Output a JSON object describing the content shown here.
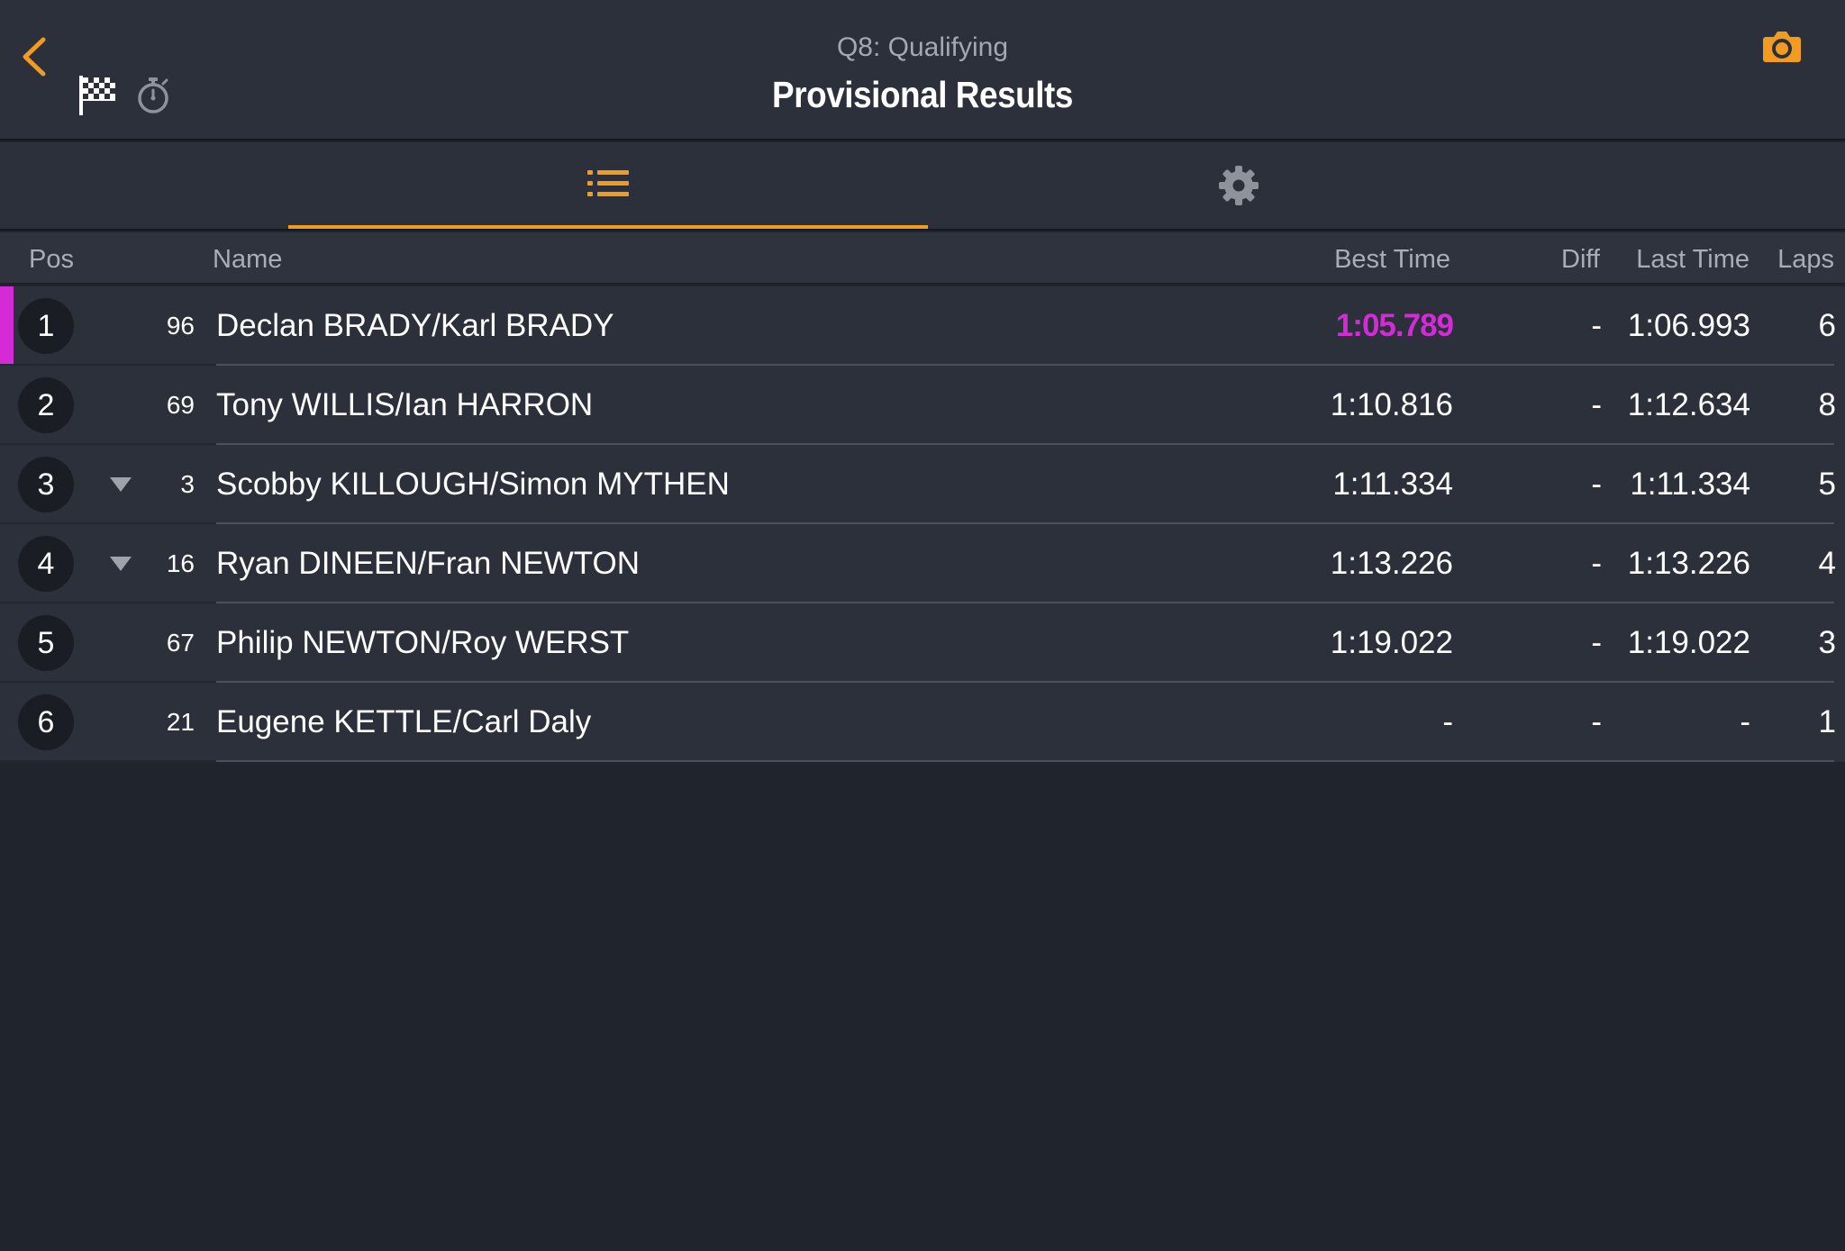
{
  "header": {
    "subtitle": "Q8: Qualifying",
    "title": "Provisional Results",
    "icons": [
      "chevron-left-icon",
      "checkered-flag-icon",
      "stopwatch-icon",
      "camera-icon"
    ]
  },
  "tabs": [
    {
      "name": "list-icon",
      "selected": true
    },
    {
      "name": "gear-icon",
      "selected": false
    }
  ],
  "columns": {
    "pos": "Pos",
    "name": "Name",
    "best": "Best Time",
    "diff": "Diff",
    "last": "Last Time",
    "laps": "Laps"
  },
  "rows": [
    {
      "pos": "1",
      "num": "96",
      "name": "Declan BRADY/Karl BRADY",
      "best": "1:05.789",
      "diff": "-",
      "last": "1:06.993",
      "laps": "6",
      "trend": "none",
      "fastest": true
    },
    {
      "pos": "2",
      "num": "69",
      "name": "Tony WILLIS/Ian HARRON",
      "best": "1:10.816",
      "diff": "-",
      "last": "1:12.634",
      "laps": "8",
      "trend": "none",
      "fastest": false
    },
    {
      "pos": "3",
      "num": "3",
      "name": "Scobby KILLOUGH/Simon MYTHEN",
      "best": "1:11.334",
      "diff": "-",
      "last": "1:11.334",
      "laps": "5",
      "trend": "down",
      "fastest": false
    },
    {
      "pos": "4",
      "num": "16",
      "name": "Ryan DINEEN/Fran NEWTON",
      "best": "1:13.226",
      "diff": "-",
      "last": "1:13.226",
      "laps": "4",
      "trend": "down",
      "fastest": false
    },
    {
      "pos": "5",
      "num": "67",
      "name": "Philip NEWTON/Roy WERST",
      "best": "1:19.022",
      "diff": "-",
      "last": "1:19.022",
      "laps": "3",
      "trend": "none",
      "fastest": false
    },
    {
      "pos": "6",
      "num": "21",
      "name": "Eugene KETTLE/Carl Daly",
      "best": "-",
      "diff": "-",
      "last": "-",
      "laps": "1",
      "trend": "none",
      "fastest": false
    }
  ],
  "colors": {
    "accent": "#f29b21",
    "fastest": "#d42ad8",
    "background": "#20242d",
    "panel": "#2b303a"
  }
}
